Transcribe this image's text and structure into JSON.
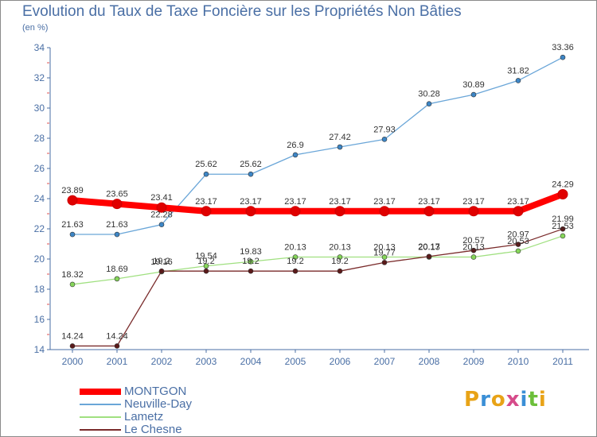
{
  "chart_data": {
    "type": "line",
    "title": "Evolution du Taux de Taxe Foncière sur les Propriétés Non Bâties",
    "ylabel": "(en %)",
    "xlabel": "",
    "categories": [
      "2000",
      "2001",
      "2002",
      "2003",
      "2004",
      "2005",
      "2006",
      "2007",
      "2008",
      "2009",
      "2010",
      "2011"
    ],
    "ylim": [
      14,
      34
    ],
    "yticks": [
      14,
      16,
      18,
      20,
      22,
      24,
      26,
      28,
      30,
      32,
      34
    ],
    "series": [
      {
        "name": "MONTGON",
        "color": "#ff0000",
        "marker_color": "#e00000",
        "values": [
          23.89,
          23.65,
          23.41,
          23.17,
          23.17,
          23.17,
          23.17,
          23.17,
          23.17,
          23.17,
          23.17,
          24.29
        ],
        "labels": [
          "23.89",
          "23.65",
          "23.41",
          "23.17",
          "23.17",
          "23.17",
          "23.17",
          "23.17",
          "23.17",
          "23.17",
          "23.17",
          "24.29"
        ]
      },
      {
        "name": "Neuville-Day",
        "color": "#6aa6d8",
        "marker_color": "#3d86c6",
        "values": [
          21.63,
          21.63,
          22.28,
          25.62,
          25.62,
          26.9,
          27.42,
          27.93,
          30.28,
          30.89,
          31.82,
          33.36
        ],
        "labels": [
          "21.63",
          "21.63",
          "22.28",
          "25.62",
          "25.62",
          "26.9",
          "27.42",
          "27.93",
          "30.28",
          "30.89",
          "31.82",
          "33.36"
        ]
      },
      {
        "name": "Lametz",
        "color": "#a0e080",
        "marker_color": "#86d65a",
        "values": [
          18.32,
          18.69,
          19.16,
          19.54,
          19.83,
          20.13,
          20.13,
          20.13,
          20.13,
          20.13,
          20.53,
          21.53
        ],
        "labels": [
          "18.32",
          "18.69",
          "19.16",
          "19.54",
          "19.83",
          "20.13",
          "20.13",
          "20.13",
          "20.13",
          "20.13",
          "20.53",
          "21.53"
        ]
      },
      {
        "name": "Le Chesne",
        "color": "#7a2b2b",
        "marker_color": "#5a1a1a",
        "values": [
          14.24,
          14.24,
          19.2,
          19.2,
          19.2,
          19.2,
          19.2,
          19.77,
          20.17,
          20.57,
          20.97,
          21.99
        ],
        "labels": [
          "14.24",
          "14.24",
          "19.2",
          "19.2",
          "19.2",
          "19.2",
          "19.2",
          "19.77",
          "20.17",
          "20.57",
          "20.97",
          "21.99"
        ]
      }
    ],
    "legend_position": "bottom-left",
    "grid": false
  },
  "logo": {
    "letters": [
      "P",
      "r",
      "o",
      "x",
      "i",
      "t",
      "i"
    ],
    "colors": [
      "#e8a317",
      "#3a8fd6",
      "#e8a317",
      "#d64b8a",
      "#3a8fd6",
      "#6cbf3a",
      "#e8a317"
    ]
  }
}
